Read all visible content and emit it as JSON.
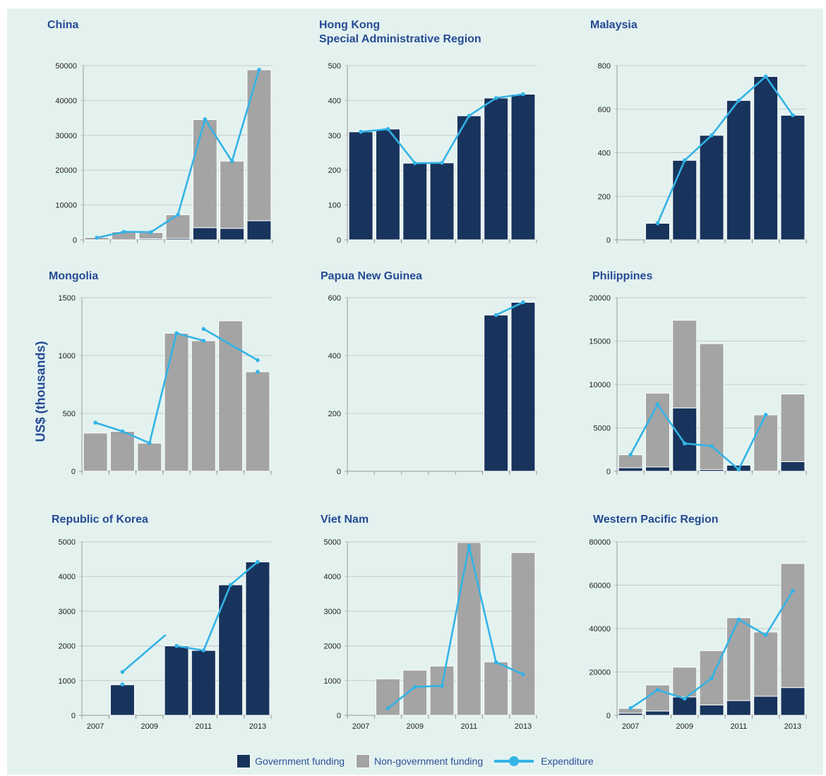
{
  "y_axis_label": "US$ (thousands)",
  "legend": {
    "government": "Government funding",
    "non_government": "Non-government funding",
    "expenditure": "Expenditure"
  },
  "colors": {
    "government": "#18345c",
    "non_government": "#a4a4a4",
    "expenditure": "#33b3e6",
    "title": "#264a94",
    "background": "#e3f2ef"
  },
  "chart_data": [
    {
      "type": "bar",
      "title": "China",
      "stacked": true,
      "categories": [
        "2007",
        "2008",
        "2009",
        "2010",
        "2011",
        "2012",
        "2013"
      ],
      "ylim": [
        0,
        50000
      ],
      "yticks": [
        0,
        10000,
        20000,
        30000,
        40000,
        50000
      ],
      "series": [
        {
          "name": "Government funding",
          "values": [
            null,
            null,
            300,
            400,
            3500,
            3300,
            5500
          ]
        },
        {
          "name": "Non-government funding",
          "values": [
            700,
            2300,
            1800,
            6800,
            31000,
            19300,
            43300
          ]
        },
        {
          "name": "Expenditure",
          "type": "line",
          "segments": [
            [
              {
                "x": "2007",
                "y": 600
              },
              {
                "x": "2008",
                "y": 2300
              },
              {
                "x": "2009",
                "y": 2200
              },
              {
                "x": "2010",
                "y": 7200
              },
              {
                "x": "2011",
                "y": 34600
              },
              {
                "x": "2012",
                "y": 22500
              },
              {
                "x": "2013",
                "y": 48800
              }
            ]
          ]
        }
      ]
    },
    {
      "type": "bar",
      "title": "Hong Kong\nSpecial Administrative Region",
      "stacked": true,
      "categories": [
        "2007",
        "2008",
        "2009",
        "2010",
        "2011",
        "2012",
        "2013"
      ],
      "ylim": [
        0,
        500
      ],
      "yticks": [
        0,
        100,
        200,
        300,
        400,
        500
      ],
      "series": [
        {
          "name": "Government funding",
          "values": [
            310,
            318,
            220,
            221,
            356,
            407,
            418
          ]
        },
        {
          "name": "Non-government funding",
          "values": [
            null,
            null,
            null,
            null,
            null,
            null,
            null
          ]
        },
        {
          "name": "Expenditure",
          "type": "line",
          "segments": [
            [
              {
                "x": "2007",
                "y": 310
              },
              {
                "x": "2008",
                "y": 318
              },
              {
                "x": "2009",
                "y": 220
              },
              {
                "x": "2010",
                "y": 221
              },
              {
                "x": "2011",
                "y": 356
              },
              {
                "x": "2012",
                "y": 407
              },
              {
                "x": "2013",
                "y": 418
              }
            ]
          ]
        }
      ]
    },
    {
      "type": "bar",
      "title": "Malaysia",
      "stacked": true,
      "categories": [
        "2007",
        "2008",
        "2009",
        "2010",
        "2011",
        "2012",
        "2013"
      ],
      "ylim": [
        0,
        800
      ],
      "yticks": [
        0,
        200,
        400,
        600,
        800
      ],
      "series": [
        {
          "name": "Government funding",
          "values": [
            null,
            76,
            365,
            480,
            640,
            750,
            572
          ]
        },
        {
          "name": "Non-government funding",
          "values": [
            null,
            null,
            null,
            null,
            null,
            null,
            null
          ]
        },
        {
          "name": "Expenditure",
          "type": "line",
          "segments": [
            [
              {
                "x": "2008",
                "y": 76
              },
              {
                "x": "2009",
                "y": 365
              },
              {
                "x": "2010",
                "y": 480
              },
              {
                "x": "2011",
                "y": 640
              },
              {
                "x": "2012",
                "y": 750
              },
              {
                "x": "2013",
                "y": 572
              }
            ]
          ]
        }
      ]
    },
    {
      "type": "bar",
      "title": "Mongolia",
      "stacked": true,
      "categories": [
        "2007",
        "2008",
        "2009",
        "2010",
        "2011",
        "2012",
        "2013"
      ],
      "ylim": [
        0,
        1500
      ],
      "yticks": [
        0,
        500,
        1000,
        1500
      ],
      "series": [
        {
          "name": "Government funding",
          "values": [
            null,
            null,
            null,
            null,
            null,
            null,
            null
          ]
        },
        {
          "name": "Non-government funding",
          "values": [
            330,
            345,
            243,
            1193,
            1128,
            1300,
            860
          ]
        },
        {
          "name": "Expenditure",
          "type": "line",
          "segments": [
            [
              {
                "x": "2007",
                "y": 420
              },
              {
                "x": "2008",
                "y": 345
              },
              {
                "x": "2009",
                "y": 243
              },
              {
                "x": "2010",
                "y": 1193
              },
              {
                "x": "2011",
                "y": 1128
              }
            ],
            [
              {
                "x": "2011",
                "y": 1230
              },
              {
                "x": "2013",
                "y": 960
              }
            ],
            [
              {
                "x": "2013",
                "y": 860
              }
            ]
          ]
        }
      ]
    },
    {
      "type": "bar",
      "title": "Papua New Guinea",
      "stacked": true,
      "categories": [
        "2007",
        "2008",
        "2009",
        "2010",
        "2011",
        "2012",
        "2013"
      ],
      "ylim": [
        0,
        600
      ],
      "yticks": [
        0,
        200,
        400,
        600
      ],
      "series": [
        {
          "name": "Government funding",
          "values": [
            null,
            null,
            null,
            null,
            null,
            540,
            584
          ]
        },
        {
          "name": "Non-government funding",
          "values": [
            null,
            null,
            null,
            null,
            null,
            null,
            null
          ]
        },
        {
          "name": "Expenditure",
          "type": "line",
          "segments": [
            [
              {
                "x": "2012",
                "y": 540
              },
              {
                "x": "2013",
                "y": 584
              }
            ]
          ]
        }
      ]
    },
    {
      "type": "bar",
      "title": "Philippines",
      "stacked": true,
      "categories": [
        "2007",
        "2008",
        "2009",
        "2010",
        "2011",
        "2012",
        "2013"
      ],
      "ylim": [
        0,
        20000
      ],
      "yticks": [
        0,
        5000,
        10000,
        15000,
        20000
      ],
      "series": [
        {
          "name": "Government funding",
          "values": [
            400,
            500,
            7300,
            200,
            700,
            null,
            1100
          ]
        },
        {
          "name": "Non-government funding",
          "values": [
            1500,
            8500,
            10100,
            14500,
            null,
            6500,
            7800
          ]
        },
        {
          "name": "Expenditure",
          "type": "line",
          "segments": [
            [
              {
                "x": "2007",
                "y": 1900
              },
              {
                "x": "2008",
                "y": 7700
              },
              {
                "x": "2009",
                "y": 3200
              },
              {
                "x": "2010",
                "y": 2900
              },
              {
                "x": "2011",
                "y": 200
              },
              {
                "x": "2012",
                "y": 6500
              }
            ]
          ]
        }
      ]
    },
    {
      "type": "bar",
      "title": "Republic of Korea",
      "stacked": true,
      "categories": [
        "2007",
        "2008",
        "2009",
        "2010",
        "2011",
        "2012",
        "2013"
      ],
      "xticks_shown": [
        "2007",
        "2009",
        "2011",
        "2013"
      ],
      "ylim": [
        0,
        5000
      ],
      "yticks": [
        0,
        1000,
        2000,
        3000,
        4000,
        5000
      ],
      "series": [
        {
          "name": "Government funding",
          "values": [
            null,
            880,
            null,
            2000,
            1870,
            3760,
            4420
          ]
        },
        {
          "name": "Non-government funding",
          "values": [
            null,
            null,
            null,
            null,
            null,
            null,
            null
          ]
        },
        {
          "name": "Expenditure",
          "type": "line",
          "segments": [
            [
              {
                "x": "2008",
                "y": 1250
              },
              {
                "x": "2009.6",
                "y": 2320
              }
            ],
            [
              {
                "x": "2010",
                "y": 2000
              },
              {
                "x": "2011",
                "y": 1870
              },
              {
                "x": "2012",
                "y": 3760
              },
              {
                "x": "2013",
                "y": 4420
              }
            ],
            [
              {
                "x": "2008",
                "y": 890
              }
            ]
          ]
        }
      ]
    },
    {
      "type": "bar",
      "title": "Viet Nam",
      "stacked": true,
      "categories": [
        "2007",
        "2008",
        "2009",
        "2010",
        "2011",
        "2012",
        "2013"
      ],
      "xticks_shown": [
        "2007",
        "2009",
        "2011",
        "2013"
      ],
      "ylim": [
        0,
        5000
      ],
      "yticks": [
        0,
        1000,
        2000,
        3000,
        4000,
        5000
      ],
      "series": [
        {
          "name": "Government funding",
          "values": [
            null,
            null,
            null,
            null,
            null,
            null,
            null
          ]
        },
        {
          "name": "Non-government funding",
          "values": [
            null,
            1050,
            1300,
            1420,
            4980,
            1540,
            4690
          ]
        },
        {
          "name": "Expenditure",
          "type": "line",
          "segments": [
            [
              {
                "x": "2008",
                "y": 200
              },
              {
                "x": "2009",
                "y": 820
              },
              {
                "x": "2010",
                "y": 850
              },
              {
                "x": "2011",
                "y": 4880
              },
              {
                "x": "2012",
                "y": 1530
              },
              {
                "x": "2013",
                "y": 1180
              }
            ]
          ]
        }
      ]
    },
    {
      "type": "bar",
      "title": "Western Pacific Region",
      "stacked": true,
      "categories": [
        "2007",
        "2008",
        "2009",
        "2010",
        "2011",
        "2012",
        "2013"
      ],
      "xticks_shown": [
        "2007",
        "2009",
        "2011",
        "2013"
      ],
      "ylim": [
        0,
        80000
      ],
      "yticks": [
        0,
        20000,
        40000,
        60000,
        80000
      ],
      "series": [
        {
          "name": "Government funding",
          "values": [
            1000,
            2000,
            8500,
            4800,
            6800,
            8800,
            12800
          ]
        },
        {
          "name": "Non-government funding",
          "values": [
            2200,
            12000,
            13700,
            25000,
            38200,
            29600,
            57200
          ]
        },
        {
          "name": "Expenditure",
          "type": "line",
          "segments": [
            [
              {
                "x": "2007",
                "y": 3300
              },
              {
                "x": "2008",
                "y": 11700
              },
              {
                "x": "2009",
                "y": 7700
              },
              {
                "x": "2010",
                "y": 17200
              },
              {
                "x": "2011",
                "y": 44200
              },
              {
                "x": "2012",
                "y": 37000
              },
              {
                "x": "2013",
                "y": 57400
              }
            ]
          ]
        }
      ]
    }
  ]
}
